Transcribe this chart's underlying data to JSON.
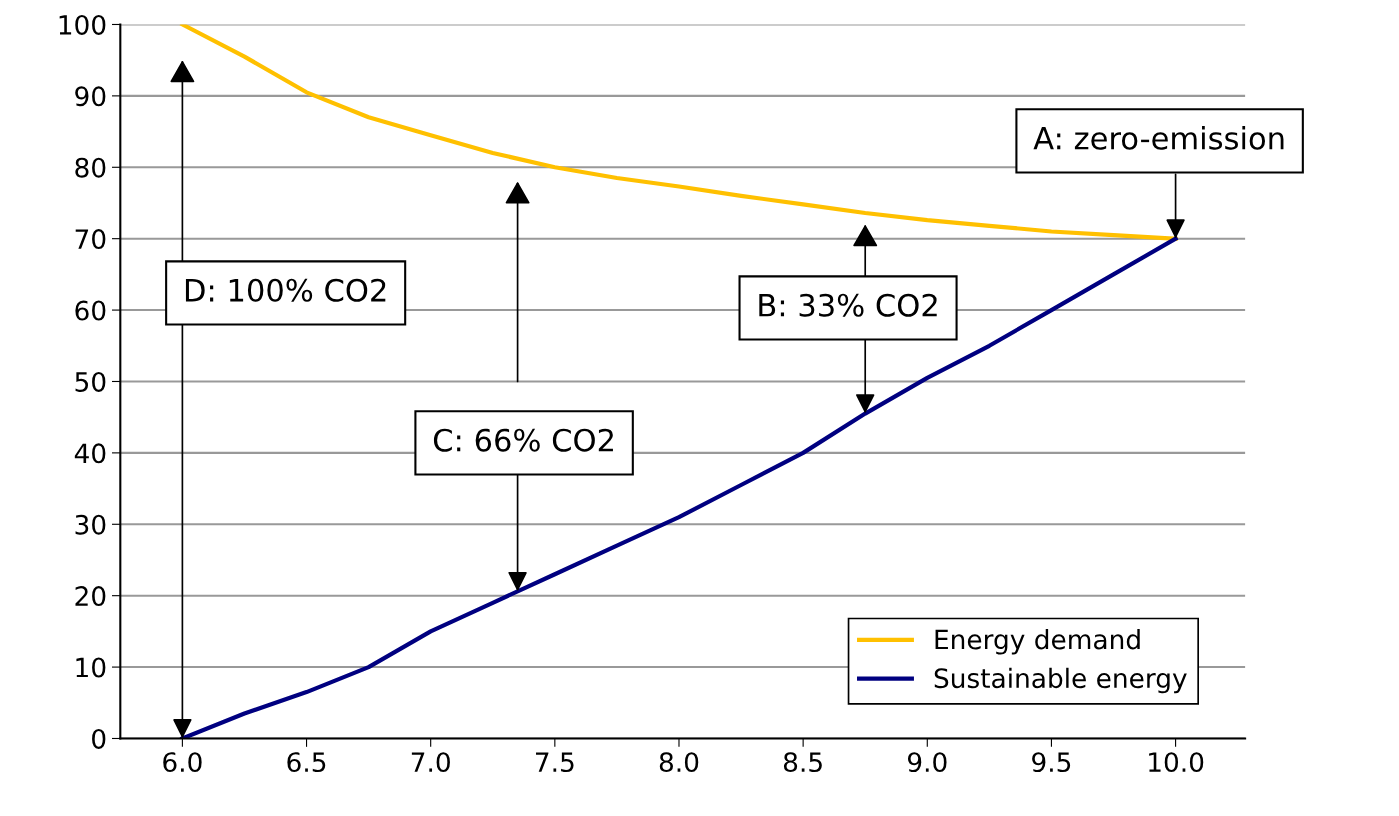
{
  "chart_data": {
    "type": "line",
    "x": [
      6.0,
      6.25,
      6.5,
      6.75,
      7.0,
      7.25,
      7.5,
      7.75,
      8.0,
      8.25,
      8.5,
      8.75,
      9.0,
      9.25,
      9.5,
      9.75,
      10.0
    ],
    "series": [
      {
        "name": "Energy demand",
        "color": "#ffc000",
        "values": [
          100,
          95.5,
          90.5,
          87,
          84.5,
          82,
          80,
          78.5,
          77.3,
          76,
          74.8,
          73.6,
          72.6,
          71.8,
          71,
          70.5,
          70
        ]
      },
      {
        "name": "Sustainable energy",
        "color": "#000080",
        "values": [
          0,
          3.5,
          6.5,
          10,
          15,
          19,
          23,
          27,
          31,
          35.5,
          40,
          45.5,
          50.5,
          55,
          60,
          65,
          70
        ]
      }
    ],
    "xlim": [
      5.75,
      10.28
    ],
    "xticks": [
      {
        "value": 6.0,
        "label": "6.0"
      },
      {
        "value": 6.5,
        "label": "6.5"
      },
      {
        "value": 7.0,
        "label": "7.0"
      },
      {
        "value": 7.5,
        "label": "7.5"
      },
      {
        "value": 8.0,
        "label": "8.0"
      },
      {
        "value": 8.5,
        "label": "8.5"
      },
      {
        "value": 9.0,
        "label": "9.0"
      },
      {
        "value": 9.5,
        "label": "9.5"
      },
      {
        "value": 10.0,
        "label": "10.0"
      }
    ],
    "ylim": [
      0,
      100
    ],
    "yticks": [
      0,
      10,
      20,
      30,
      40,
      50,
      60,
      70,
      80,
      90,
      100
    ],
    "grid": "y",
    "legend": "bottom right",
    "line_style": "solid",
    "annotations": [
      {
        "text": "A: zero-emission",
        "x": 10.0,
        "y": 70
      },
      {
        "text": "B: 33% CO2",
        "x": 8.75,
        "y": 45.5
      },
      {
        "text": "C: 66% CO2",
        "x": 7.35,
        "y": 20.6
      },
      {
        "text": "D: 100% CO2",
        "x": 6.0,
        "y": 0
      }
    ]
  }
}
